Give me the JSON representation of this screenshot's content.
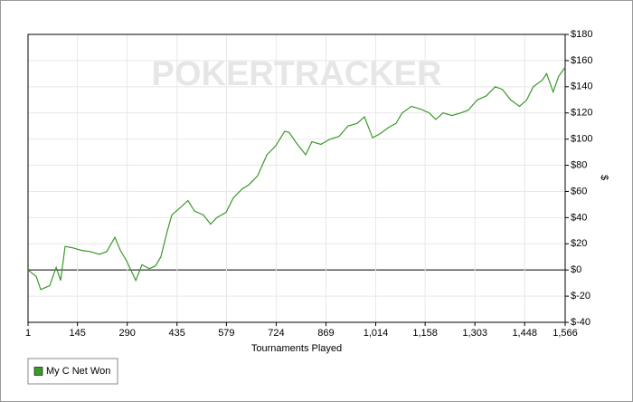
{
  "chart_data": {
    "type": "line",
    "watermark": "POKERTRACKER",
    "x_label": "Tournaments Played",
    "y_label": "$",
    "grid": true,
    "legend": "bottom-left",
    "xlim": [
      1,
      1566
    ],
    "ylim": [
      -40,
      180
    ],
    "xticks": [
      1,
      145,
      290,
      435,
      579,
      724,
      869,
      {
        "value": 1014,
        "label": "1,014"
      },
      {
        "value": 1158,
        "label": "1,158"
      },
      {
        "value": 1303,
        "label": "1,303"
      },
      {
        "value": 1448,
        "label": "1,448"
      },
      {
        "value": 1566,
        "label": "1,566"
      }
    ],
    "yticks": [
      {
        "value": -40,
        "label": "$-40"
      },
      {
        "value": -20,
        "label": "$-20"
      },
      {
        "value": 0,
        "label": "$0"
      },
      {
        "value": 20,
        "label": "$20"
      },
      {
        "value": 40,
        "label": "$40"
      },
      {
        "value": 60,
        "label": "$60"
      },
      {
        "value": 80,
        "label": "$80"
      },
      {
        "value": 100,
        "label": "$100"
      },
      {
        "value": 120,
        "label": "$120"
      },
      {
        "value": 140,
        "label": "$140"
      },
      {
        "value": 160,
        "label": "$160"
      },
      {
        "value": 180,
        "label": "$180"
      }
    ],
    "x": [
      1,
      25,
      38,
      64,
      83,
      96,
      109,
      130,
      156,
      183,
      209,
      230,
      254,
      270,
      288,
      315,
      333,
      354,
      372,
      388,
      407,
      420,
      446,
      467,
      486,
      512,
      533,
      551,
      578,
      599,
      625,
      644,
      670,
      697,
      723,
      749,
      762,
      783,
      810,
      828,
      854,
      881,
      907,
      933,
      960,
      981,
      1005,
      1026,
      1052,
      1073,
      1091,
      1118,
      1144,
      1170,
      1189,
      1210,
      1236,
      1262,
      1283,
      1310,
      1336,
      1362,
      1383,
      1407,
      1433,
      1454,
      1473,
      1499,
      1512,
      1531,
      1547,
      1566
    ],
    "series": [
      {
        "name": "My C Net Won",
        "color": "#3a9a2a",
        "values": [
          0,
          -5,
          -15,
          -12,
          2,
          -8,
          18,
          17,
          15,
          14,
          12,
          14,
          25,
          15,
          7,
          -8,
          4,
          1,
          3,
          10,
          30,
          42,
          48,
          53,
          45,
          42,
          35,
          40,
          44,
          55,
          62,
          65,
          72,
          88,
          95,
          106,
          105,
          97,
          88,
          98,
          96,
          100,
          102,
          110,
          112,
          117,
          101,
          104,
          109,
          112,
          120,
          125,
          123,
          120,
          115,
          120,
          118,
          120,
          122,
          130,
          133,
          140,
          138,
          130,
          125,
          130,
          140,
          145,
          150,
          136,
          148,
          155
        ]
      }
    ]
  }
}
